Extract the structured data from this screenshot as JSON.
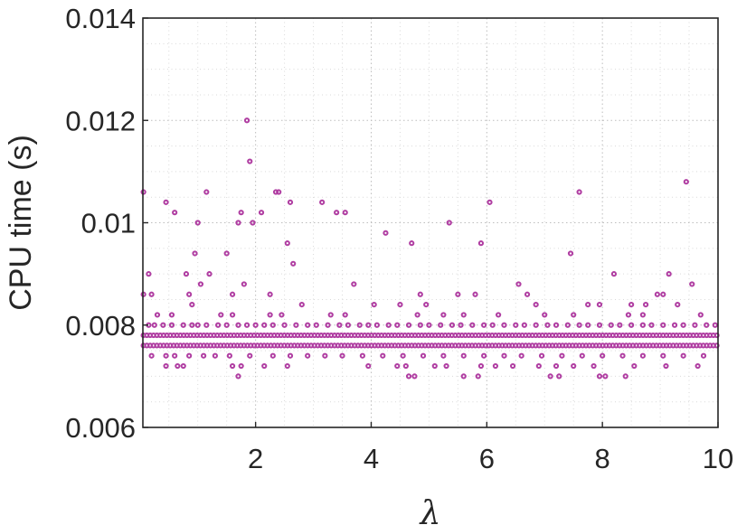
{
  "chart_data": {
    "type": "scatter",
    "title": "",
    "xlabel": "λ",
    "ylabel": "CPU time (s)",
    "xlim": [
      0.05,
      10
    ],
    "ylim": [
      0.006,
      0.014
    ],
    "xticks": [
      2,
      4,
      6,
      8,
      10
    ],
    "xtick_labels": [
      "2",
      "4",
      "6",
      "8",
      "10"
    ],
    "yticks": [
      0.006,
      0.008,
      0.01,
      0.012,
      0.014
    ],
    "ytick_labels": [
      "0.006",
      "0.008",
      "0.01",
      "0.012",
      "0.014"
    ],
    "grid": true,
    "grid_minor": true,
    "marker": "circle",
    "marker_color": "#b03ea2",
    "series": [
      {
        "name": "",
        "points": [
          [
            0.06,
            0.0106
          ],
          [
            0.06,
            0.0086
          ],
          [
            0.15,
            0.009
          ],
          [
            0.2,
            0.0086
          ],
          [
            0.45,
            0.0104
          ],
          [
            0.6,
            0.0102
          ],
          [
            0.8,
            0.009
          ],
          [
            0.85,
            0.0086
          ],
          [
            0.9,
            0.0084
          ],
          [
            0.95,
            0.0094
          ],
          [
            1.0,
            0.01
          ],
          [
            1.05,
            0.0088
          ],
          [
            1.15,
            0.0106
          ],
          [
            1.2,
            0.009
          ],
          [
            1.5,
            0.0094
          ],
          [
            1.6,
            0.0086
          ],
          [
            1.7,
            0.01
          ],
          [
            1.75,
            0.0102
          ],
          [
            1.8,
            0.0088
          ],
          [
            1.85,
            0.012
          ],
          [
            1.9,
            0.0112
          ],
          [
            1.95,
            0.01
          ],
          [
            2.1,
            0.0102
          ],
          [
            2.25,
            0.0086
          ],
          [
            2.35,
            0.0106
          ],
          [
            2.4,
            0.0106
          ],
          [
            2.55,
            0.0096
          ],
          [
            2.6,
            0.0104
          ],
          [
            2.65,
            0.0092
          ],
          [
            2.8,
            0.0084
          ],
          [
            3.15,
            0.0104
          ],
          [
            3.4,
            0.0102
          ],
          [
            3.55,
            0.0102
          ],
          [
            3.7,
            0.0088
          ],
          [
            4.05,
            0.0084
          ],
          [
            4.25,
            0.0098
          ],
          [
            4.5,
            0.0084
          ],
          [
            4.7,
            0.0096
          ],
          [
            4.85,
            0.0086
          ],
          [
            4.95,
            0.0084
          ],
          [
            5.35,
            0.01
          ],
          [
            5.5,
            0.0086
          ],
          [
            5.8,
            0.0086
          ],
          [
            5.9,
            0.0096
          ],
          [
            6.05,
            0.0104
          ],
          [
            6.55,
            0.0088
          ],
          [
            6.7,
            0.0086
          ],
          [
            6.85,
            0.0084
          ],
          [
            7.45,
            0.0094
          ],
          [
            7.5,
            0.0082
          ],
          [
            7.6,
            0.0106
          ],
          [
            7.75,
            0.0084
          ],
          [
            7.95,
            0.0084
          ],
          [
            8.2,
            0.009
          ],
          [
            8.5,
            0.0084
          ],
          [
            8.75,
            0.0084
          ],
          [
            8.95,
            0.0086
          ],
          [
            9.05,
            0.0086
          ],
          [
            9.15,
            0.009
          ],
          [
            9.3,
            0.0084
          ],
          [
            9.45,
            0.0108
          ],
          [
            9.55,
            0.0088
          ],
          [
            9.7,
            0.0082
          ],
          [
            0.3,
            0.0082
          ],
          [
            0.55,
            0.0082
          ],
          [
            1.4,
            0.0082
          ],
          [
            1.6,
            0.0082
          ],
          [
            2.25,
            0.0082
          ],
          [
            2.45,
            0.0082
          ],
          [
            3.3,
            0.0082
          ],
          [
            3.55,
            0.0082
          ],
          [
            4.8,
            0.0082
          ],
          [
            5.25,
            0.0082
          ],
          [
            5.6,
            0.0082
          ],
          [
            6.2,
            0.0082
          ],
          [
            7.0,
            0.0082
          ],
          [
            8.45,
            0.0082
          ],
          [
            8.7,
            0.0082
          ],
          [
            0.15,
            0.008
          ],
          [
            0.25,
            0.008
          ],
          [
            0.4,
            0.008
          ],
          [
            0.55,
            0.008
          ],
          [
            0.75,
            0.008
          ],
          [
            0.9,
            0.008
          ],
          [
            1.0,
            0.008
          ],
          [
            1.15,
            0.008
          ],
          [
            1.35,
            0.008
          ],
          [
            1.5,
            0.008
          ],
          [
            1.7,
            0.008
          ],
          [
            1.85,
            0.008
          ],
          [
            2.0,
            0.008
          ],
          [
            2.15,
            0.008
          ],
          [
            2.3,
            0.008
          ],
          [
            2.5,
            0.008
          ],
          [
            2.7,
            0.008
          ],
          [
            2.9,
            0.008
          ],
          [
            3.05,
            0.008
          ],
          [
            3.25,
            0.008
          ],
          [
            3.45,
            0.008
          ],
          [
            3.6,
            0.008
          ],
          [
            3.8,
            0.008
          ],
          [
            3.95,
            0.008
          ],
          [
            4.1,
            0.008
          ],
          [
            4.3,
            0.008
          ],
          [
            4.45,
            0.008
          ],
          [
            4.65,
            0.008
          ],
          [
            4.85,
            0.008
          ],
          [
            5.0,
            0.008
          ],
          [
            5.2,
            0.008
          ],
          [
            5.4,
            0.008
          ],
          [
            5.55,
            0.008
          ],
          [
            5.75,
            0.008
          ],
          [
            5.95,
            0.008
          ],
          [
            6.1,
            0.008
          ],
          [
            6.3,
            0.008
          ],
          [
            6.5,
            0.008
          ],
          [
            6.65,
            0.008
          ],
          [
            6.85,
            0.008
          ],
          [
            7.05,
            0.008
          ],
          [
            7.2,
            0.008
          ],
          [
            7.4,
            0.008
          ],
          [
            7.6,
            0.008
          ],
          [
            7.75,
            0.008
          ],
          [
            7.95,
            0.008
          ],
          [
            8.15,
            0.008
          ],
          [
            8.3,
            0.008
          ],
          [
            8.5,
            0.008
          ],
          [
            8.7,
            0.008
          ],
          [
            8.85,
            0.008
          ],
          [
            9.05,
            0.008
          ],
          [
            9.25,
            0.008
          ],
          [
            9.4,
            0.008
          ],
          [
            9.6,
            0.008
          ],
          [
            9.8,
            0.008
          ],
          [
            9.95,
            0.008
          ],
          [
            0.2,
            0.0074
          ],
          [
            0.45,
            0.0074
          ],
          [
            0.6,
            0.0074
          ],
          [
            0.85,
            0.0074
          ],
          [
            1.1,
            0.0074
          ],
          [
            1.3,
            0.0074
          ],
          [
            1.55,
            0.0074
          ],
          [
            1.9,
            0.0074
          ],
          [
            2.3,
            0.0074
          ],
          [
            2.6,
            0.0074
          ],
          [
            2.9,
            0.0074
          ],
          [
            3.2,
            0.0074
          ],
          [
            3.5,
            0.0074
          ],
          [
            3.85,
            0.0074
          ],
          [
            4.2,
            0.0074
          ],
          [
            4.55,
            0.0074
          ],
          [
            4.9,
            0.0074
          ],
          [
            5.25,
            0.0074
          ],
          [
            5.6,
            0.0074
          ],
          [
            5.95,
            0.0074
          ],
          [
            6.3,
            0.0074
          ],
          [
            6.6,
            0.0074
          ],
          [
            6.95,
            0.0074
          ],
          [
            7.3,
            0.0074
          ],
          [
            7.65,
            0.0074
          ],
          [
            8.0,
            0.0074
          ],
          [
            8.35,
            0.0074
          ],
          [
            8.7,
            0.0074
          ],
          [
            9.05,
            0.0074
          ],
          [
            9.4,
            0.0074
          ],
          [
            9.75,
            0.0074
          ],
          [
            0.45,
            0.0072
          ],
          [
            0.65,
            0.0072
          ],
          [
            0.75,
            0.0072
          ],
          [
            1.6,
            0.0072
          ],
          [
            1.75,
            0.0072
          ],
          [
            2.15,
            0.0072
          ],
          [
            2.55,
            0.0072
          ],
          [
            3.95,
            0.0072
          ],
          [
            4.45,
            0.0072
          ],
          [
            4.6,
            0.0072
          ],
          [
            5.1,
            0.0072
          ],
          [
            5.3,
            0.0072
          ],
          [
            5.9,
            0.0072
          ],
          [
            6.15,
            0.0072
          ],
          [
            6.45,
            0.0072
          ],
          [
            6.9,
            0.0072
          ],
          [
            7.2,
            0.0072
          ],
          [
            7.5,
            0.0072
          ],
          [
            7.85,
            0.0072
          ],
          [
            8.55,
            0.0072
          ],
          [
            9.1,
            0.0072
          ],
          [
            9.65,
            0.0072
          ],
          [
            1.7,
            0.007
          ],
          [
            4.65,
            0.007
          ],
          [
            4.75,
            0.007
          ],
          [
            5.6,
            0.007
          ],
          [
            5.85,
            0.007
          ],
          [
            7.1,
            0.007
          ],
          [
            7.25,
            0.007
          ],
          [
            7.95,
            0.007
          ],
          [
            8.05,
            0.007
          ],
          [
            8.4,
            0.007
          ]
        ]
      }
    ]
  }
}
